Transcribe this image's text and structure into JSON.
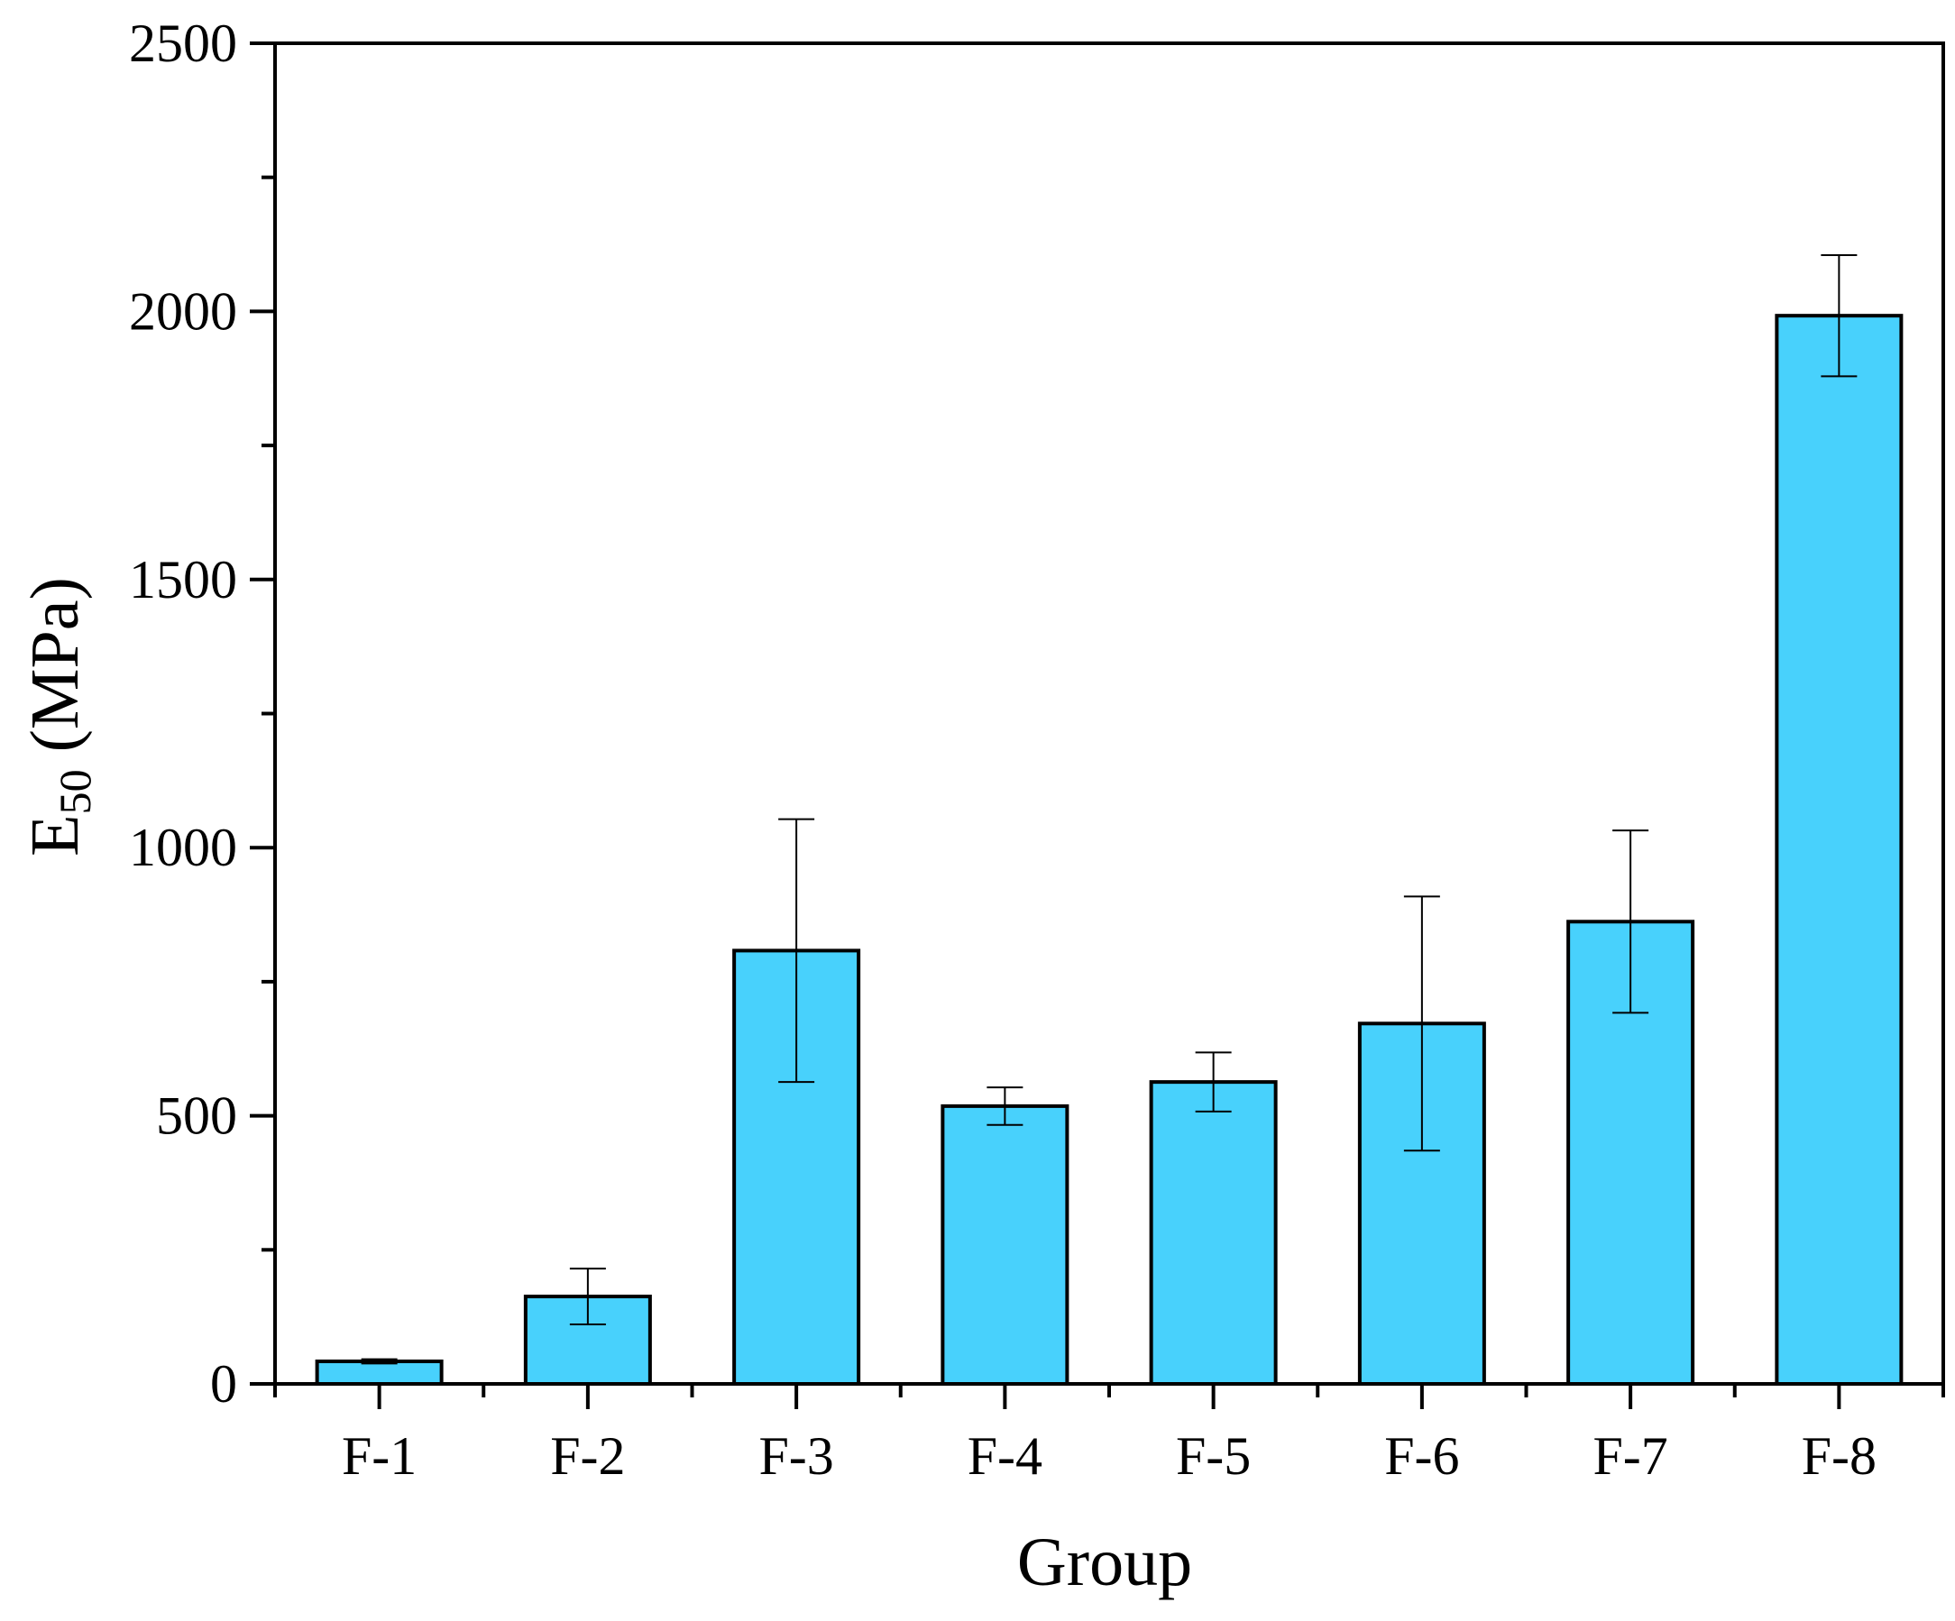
{
  "chart_data": {
    "type": "bar",
    "title": "",
    "xlabel": "Group",
    "ylabel": {
      "main": "E",
      "subscript": "50",
      "unit": " (MPa)"
    },
    "categories": [
      "F-1",
      "F-2",
      "F-3",
      "F-4",
      "F-5",
      "F-6",
      "F-7",
      "F-8"
    ],
    "values": [
      42,
      163,
      808,
      518,
      563,
      672,
      862,
      1992
    ],
    "errors": [
      4,
      52,
      245,
      35,
      55,
      237,
      170,
      113
    ],
    "ylim": [
      0,
      2500
    ],
    "yticks": [
      0,
      500,
      1000,
      1500,
      2000,
      2500
    ],
    "ytick_labels": [
      "0",
      "500",
      "1000",
      "1500",
      "2000",
      "2500"
    ],
    "grid": false,
    "bar_color": "#48d1fc",
    "edge_color": "#000000"
  }
}
